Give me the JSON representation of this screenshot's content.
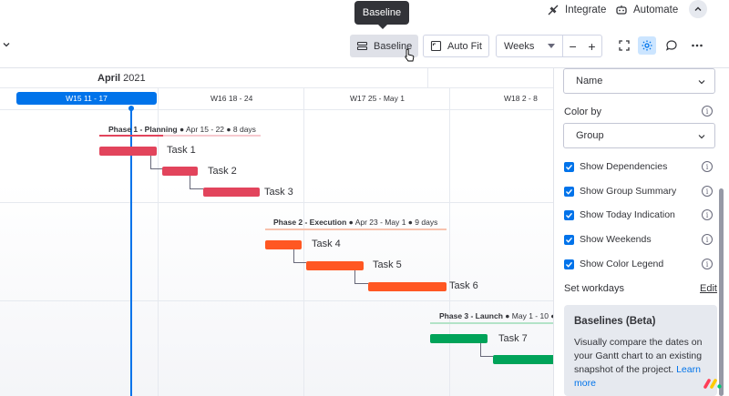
{
  "topbar": {
    "integrate_label": "Integrate",
    "automate_label": "Automate"
  },
  "toolbar": {
    "baseline_label": "Baseline",
    "autofit_label": "Auto Fit",
    "zoom_select_value": "Weeks",
    "zoom_out_symbol": "−",
    "zoom_in_symbol": "+"
  },
  "tooltip": {
    "text": "Baseline"
  },
  "timeline": {
    "month_name": "April",
    "month_year": "2021",
    "weeks": [
      {
        "label": "W15  11 - 17",
        "current": true
      },
      {
        "label": "W16  18 - 24",
        "current": false
      },
      {
        "label": "W17  25 - May 1",
        "current": false
      },
      {
        "label": "W18  2 - 8",
        "current": false
      }
    ]
  },
  "groups": [
    {
      "name": "Phase 1 - Planning",
      "meta": " ● Apr 15 - 22 ● 8 days",
      "color": "#e2445c",
      "tasks": [
        "Task 1",
        "Task 2",
        "Task 3"
      ]
    },
    {
      "name": "Phase 2 - Execution",
      "meta": " ● Apr 23 - May 1 ● 9 days",
      "color": "#ff5722",
      "tasks": [
        "Task 4",
        "Task 5",
        "Task 6"
      ]
    },
    {
      "name": "Phase 3 - Launch",
      "meta": " ● May 1 - 10 ●",
      "color": "#00a359",
      "tasks": [
        "Task 7"
      ]
    }
  ],
  "panel": {
    "name_select": "Name",
    "color_by_label": "Color by",
    "color_by_select": "Group",
    "options": [
      {
        "label": "Show Dependencies",
        "checked": true
      },
      {
        "label": "Show Group Summary",
        "checked": true
      },
      {
        "label": "Show Today Indication",
        "checked": true
      },
      {
        "label": "Show Weekends",
        "checked": true
      },
      {
        "label": "Show Color Legend",
        "checked": true
      }
    ],
    "workdays_label": "Set workdays",
    "edit_label": "Edit",
    "baselines_title": "Baselines (Beta)",
    "baselines_desc": "Visually compare the dates on your Gantt chart to an existing snapshot of the project.",
    "learn_more": "Learn more"
  },
  "colors": {
    "accent": "#0073ea",
    "phase1": "#e2445c",
    "phase2": "#ff5722",
    "phase3": "#00a359"
  }
}
